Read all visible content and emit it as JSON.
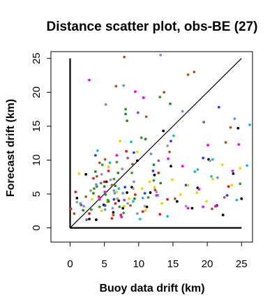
{
  "chart_data": {
    "type": "scatter",
    "title": "Distance scatter plot, obs-BE (27)",
    "xlabel": "Buoy data drift (km)",
    "ylabel": "Forecast drift (km)",
    "xlim": [
      -2.8,
      26.6
    ],
    "ylim": [
      -2.1,
      26.0
    ],
    "xticks": [
      0,
      5,
      10,
      15,
      20,
      25
    ],
    "yticks": [
      0,
      5,
      10,
      15,
      20,
      25
    ],
    "grid": false,
    "reference_line": {
      "x": [
        0,
        25
      ],
      "y": [
        0,
        25
      ],
      "color": "#000000"
    },
    "axis_lines": {
      "x": [
        0,
        25
      ],
      "y": [
        0,
        25
      ],
      "color": "#000000"
    },
    "colors": [
      "#000000",
      "#e41a1c",
      "#2ca02c",
      "#1f3fff",
      "#17becf",
      "#ff00ff",
      "#e6d800",
      "#999999",
      "#a65628",
      "#984ea3",
      "#228b22",
      "#6495ed"
    ],
    "series": [
      {
        "color": "#000000",
        "x": [
          1.0,
          2.3,
          3.8,
          4.9,
          5.3,
          6.3,
          7.1,
          7.7,
          9.0,
          9.8,
          11.2,
          11.7,
          12.3,
          13.6,
          14.7,
          17.8,
          18.6,
          20.2,
          21.4,
          22.3,
          23.8,
          24.5,
          25.0,
          2.8,
          8.3,
          15.6
        ],
        "y": [
          4.4,
          7.9,
          1.2,
          3.4,
          6.8,
          2.3,
          4.0,
          2.9,
          6.0,
          9.9,
          3.1,
          5.2,
          7.8,
          14.3,
          9.1,
          2.9,
          5.9,
          10.1,
          3.3,
          1.9,
          8.0,
          14.7,
          4.3,
          1.3,
          5.2,
          3.9
        ]
      },
      {
        "color": "#e41a1c",
        "x": [
          0.1,
          0.8,
          1.6,
          2.8,
          4.2,
          5.0,
          5.6,
          6.6,
          7.4,
          8.2,
          9.5,
          10.6,
          12.9,
          14.2,
          21.2,
          23.1,
          3.4,
          6.1,
          13.1
        ],
        "y": [
          2.8,
          5.3,
          3.4,
          2.1,
          4.6,
          6.8,
          8.4,
          3.6,
          1.9,
          11.3,
          4.9,
          2.4,
          8.1,
          4.2,
          3.2,
          6.1,
          7.3,
          1.4,
          2.0
        ]
      },
      {
        "color": "#2ca02c",
        "x": [
          3.1,
          3.9,
          4.7,
          5.5,
          6.4,
          7.2,
          8.1,
          9.0,
          10.4,
          11.4,
          12.2,
          13.1,
          4.3,
          6.8,
          7.8,
          3.5,
          5.2,
          24.8
        ],
        "y": [
          2.7,
          6.1,
          9.3,
          4.1,
          7.2,
          3.1,
          17.5,
          8.1,
          13.3,
          4.5,
          7.0,
          19.3,
          3.1,
          9.7,
          2.2,
          5.8,
          4.9,
          6.5
        ]
      },
      {
        "color": "#1f3fff",
        "x": [
          3.7,
          5.1,
          8.0,
          9.3,
          10.9,
          14.7,
          16.9,
          19.4,
          21.7,
          22.9,
          6.4,
          12.1
        ],
        "y": [
          10.7,
          3.3,
          6.0,
          11.1,
          5.1,
          12.8,
          6.3,
          10.3,
          17.8,
          4.8,
          4.2,
          8.4
        ]
      },
      {
        "color": "#17becf",
        "x": [
          1.5,
          4.0,
          5.8,
          7.1,
          8.9,
          10.2,
          12.8,
          15.1,
          18.2,
          20.6,
          24.3,
          26.2,
          25.8,
          20.8,
          14.2,
          9.2
        ],
        "y": [
          3.6,
          11.4,
          9.6,
          5.8,
          12.7,
          1.3,
          4.8,
          13.6,
          8.3,
          7.6,
          4.1,
          15.2,
          9.2,
          10.1,
          1.7,
          3.9
        ]
      },
      {
        "color": "#ff00ff",
        "x": [
          2.8,
          4.3,
          6.8,
          9.5,
          10.7,
          12.6,
          14.3,
          16.4,
          18.8,
          20.1,
          21.3,
          23.7,
          24.6,
          19.4,
          17.2,
          5.1,
          7.5
        ],
        "y": [
          21.8,
          4.2,
          10.7,
          20.1,
          19.2,
          4.8,
          10.2,
          9.1,
          5.7,
          12.2,
          3.2,
          8.4,
          12.3,
          3.1,
          2.9,
          5.3,
          1.6
        ]
      },
      {
        "color": "#e6d800",
        "x": [
          1.3,
          3.2,
          4.6,
          5.6,
          6.8,
          7.9,
          9.8,
          11.0,
          12.3,
          13.4,
          14.9,
          16.1,
          17.2,
          18.5,
          19.9,
          20.8,
          22.2,
          23.6,
          24.8,
          5.4,
          7.3,
          8.6,
          11.6,
          10.5
        ],
        "y": [
          8.0,
          4.2,
          2.5,
          9.0,
          5.3,
          3.2,
          11.2,
          2.6,
          6.0,
          3.6,
          7.1,
          4.9,
          6.3,
          5.2,
          3.9,
          7.2,
          9.3,
          6.3,
          8.8,
          3.8,
          12.8,
          4.3,
          6.8,
          5.8
        ]
      },
      {
        "color": "#999999",
        "x": [
          1.0,
          3.0,
          4.6,
          6.2,
          7.6,
          9.2,
          10.9,
          12.6,
          14.2,
          16.9,
          20.4,
          5.9,
          6.9,
          8.4,
          9.8
        ],
        "y": [
          3.8,
          5.5,
          7.9,
          2.9,
          8.7,
          5.8,
          3.2,
          5.3,
          12.1,
          3.2,
          9.9,
          7.1,
          4.3,
          3.6,
          2.1
        ]
      },
      {
        "color": "#a65628",
        "x": [
          0.6,
          2.3,
          3.9,
          5.1,
          6.1,
          6.7,
          7.9,
          9.1,
          11.1,
          13.7,
          14.5,
          15.3,
          17.2,
          18.1,
          20.7,
          22.7,
          23.4,
          8.8,
          12.4,
          6.3,
          4.3
        ],
        "y": [
          2.1,
          4.6,
          7.6,
          10.1,
          6.3,
          20.9,
          25.2,
          9.4,
          16.4,
          20.0,
          11.2,
          4.3,
          22.6,
          23.0,
          2.8,
          12.6,
          14.8,
          3.3,
          5.6,
          1.9,
          9.6
        ]
      },
      {
        "color": "#984ea3",
        "x": [
          2.4,
          4.5,
          7.9,
          9.9,
          12.9,
          19.5,
          22.5,
          8.4
        ],
        "y": [
          1.2,
          6.6,
          4.1,
          17.0,
          9.9,
          15.6,
          4.5,
          10.3
        ]
      },
      {
        "color": "#228b22",
        "x": [
          1.9,
          3.4,
          5.0,
          7.0,
          8.3,
          9.4,
          11.0,
          12.2,
          13.2,
          14.6,
          5.6,
          8.1,
          3.7,
          6.6
        ],
        "y": [
          2.6,
          5.1,
          6.1,
          8.1,
          15.8,
          4.3,
          13.1,
          9.3,
          6.6,
          18.3,
          3.9,
          16.8,
          8.3,
          6.2
        ]
      },
      {
        "color": "#6495ed",
        "x": [
          2.0,
          3.8,
          5.2,
          6.5,
          7.8,
          9.3,
          10.6,
          11.8,
          13.2,
          16.4,
          18.6,
          21.5,
          24.0,
          5.1,
          7.7,
          6.4
        ],
        "y": [
          3.2,
          6.4,
          18.2,
          5.1,
          21.0,
          6.8,
          4.4,
          10.9,
          25.5,
          17.2,
          8.6,
          7.4,
          16.1,
          2.7,
          5.1,
          5.5
        ]
      }
    ]
  }
}
